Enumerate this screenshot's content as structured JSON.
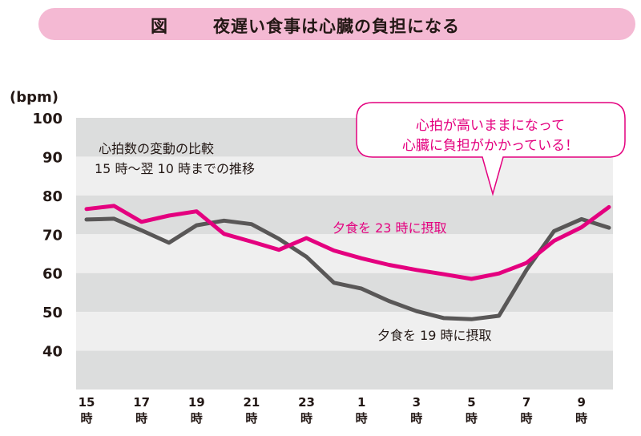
{
  "header": {
    "figure_label": "図",
    "title": "夜遅い食事は心臓の負担になる"
  },
  "chart_data": {
    "type": "line",
    "y_unit": "(bpm)",
    "ylim": [
      30,
      100
    ],
    "y_ticks": [
      100,
      90,
      80,
      70,
      60,
      50,
      40
    ],
    "x": [
      "15時",
      "16時",
      "17時",
      "18時",
      "19時",
      "20時",
      "21時",
      "22時",
      "23時",
      "0時",
      "1時",
      "2時",
      "3時",
      "4時",
      "5時",
      "6時",
      "7時",
      "8時",
      "9時",
      "10時"
    ],
    "x_tick_labels": [
      {
        "x": "15時",
        "num": "15",
        "unit": "時"
      },
      {
        "x": "17時",
        "num": "17",
        "unit": "時"
      },
      {
        "x": "19時",
        "num": "19",
        "unit": "時"
      },
      {
        "x": "21時",
        "num": "21",
        "unit": "時"
      },
      {
        "x": "23時",
        "num": "23",
        "unit": "時"
      },
      {
        "x": "1時",
        "num": "1",
        "unit": "時"
      },
      {
        "x": "3時",
        "num": "3",
        "unit": "時"
      },
      {
        "x": "5時",
        "num": "5",
        "unit": "時"
      },
      {
        "x": "7時",
        "num": "7",
        "unit": "時"
      },
      {
        "x": "9時",
        "num": "9",
        "unit": "時"
      }
    ],
    "series": [
      {
        "name": "夕食を 23 時に摂取",
        "color": "#e4007f",
        "values": [
          76.5,
          77.3,
          73.2,
          74.8,
          75.9,
          70.1,
          68.1,
          66.0,
          69.0,
          65.8,
          63.8,
          62.1,
          60.8,
          59.7,
          58.5,
          59.9,
          62.6,
          68.3,
          71.8,
          77.0
        ]
      },
      {
        "name": "夕食を 19 時に摂取",
        "color": "#595757",
        "values": [
          73.8,
          74.0,
          71.0,
          67.8,
          72.3,
          73.5,
          72.6,
          68.8,
          64.2,
          57.5,
          56.0,
          52.8,
          50.2,
          48.4,
          48.1,
          49.0,
          60.8,
          70.8,
          73.9,
          71.7
        ]
      }
    ],
    "annotations": {
      "comparison_line1": "心拍数の変動の比較",
      "comparison_line2": "15 時～翌 10 時までの推移",
      "callout_line1": "心拍が高いままになって",
      "callout_line2": "心臓に負担がかかっている！"
    },
    "grid": "alternating horizontal bands"
  }
}
